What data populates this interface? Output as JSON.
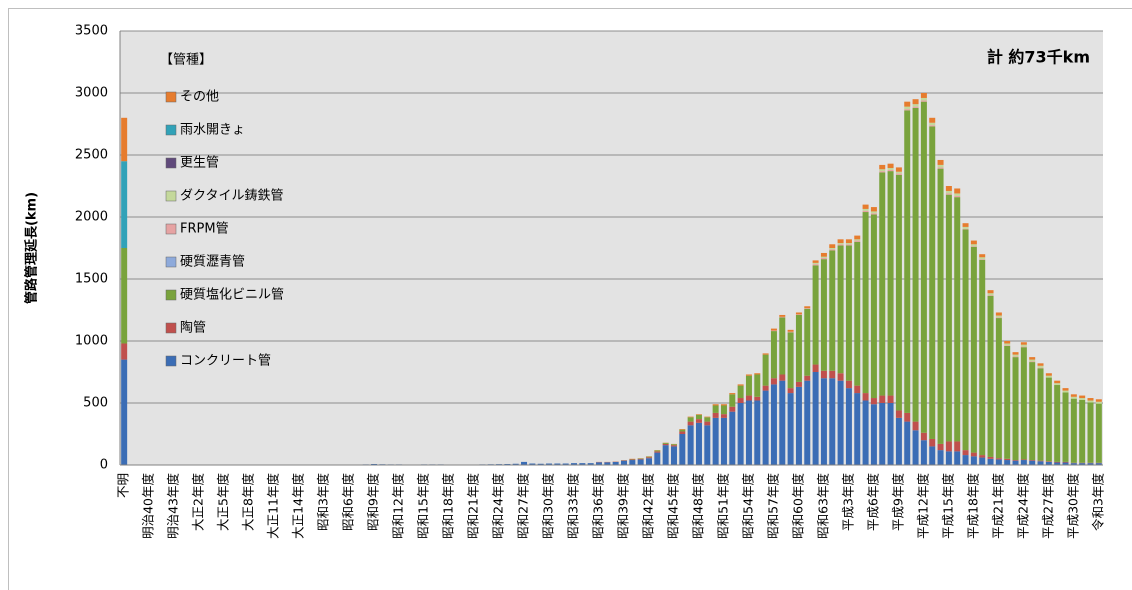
{
  "chart_data": {
    "type": "stacked_bar",
    "annotation": "計 約73千km",
    "y_label": "管路管理延長(km)",
    "legend_title": "【管種】",
    "legend": "upper left",
    "grid": true,
    "ylim": [
      0,
      3500
    ],
    "yticks": [
      0,
      500,
      1000,
      1500,
      2000,
      2500,
      3000,
      3500
    ],
    "categories": [
      "不明",
      null,
      null,
      "明治40年度",
      null,
      null,
      "明治43年度",
      null,
      null,
      "大正2年度",
      null,
      null,
      "大正5年度",
      null,
      null,
      "大正8年度",
      null,
      null,
      "大正11年度",
      null,
      null,
      "大正14年度",
      null,
      null,
      "昭和3年度",
      null,
      null,
      "昭和6年度",
      null,
      null,
      "昭和9年度",
      null,
      null,
      "昭和12年度",
      null,
      null,
      "昭和15年度",
      null,
      null,
      "昭和18年度",
      null,
      null,
      "昭和21年度",
      null,
      null,
      "昭和24年度",
      null,
      null,
      "昭和27年度",
      null,
      null,
      "昭和30年度",
      null,
      null,
      "昭和33年度",
      null,
      null,
      "昭和36年度",
      null,
      null,
      "昭和39年度",
      null,
      null,
      "昭和42年度",
      null,
      null,
      "昭和45年度",
      null,
      null,
      "昭和48年度",
      null,
      null,
      "昭和51年度",
      null,
      null,
      "昭和54年度",
      null,
      null,
      "昭和57年度",
      null,
      null,
      "昭和60年度",
      null,
      null,
      "昭和63年度",
      null,
      null,
      "平成3年度",
      null,
      null,
      "平成6年度",
      null,
      null,
      "平成9年度",
      null,
      null,
      "平成12年度",
      null,
      null,
      "平成15年度",
      null,
      null,
      "平成18年度",
      null,
      null,
      "平成21年度",
      null,
      null,
      "平成24年度",
      null,
      null,
      "平成27年度",
      null,
      null,
      "平成30年度",
      null,
      null,
      "令和3年度"
    ],
    "series": [
      {
        "name": "コンクリート管",
        "color": "#3b6db5",
        "values": [
          850,
          0,
          0,
          0,
          0,
          0,
          0,
          0,
          0,
          0,
          0,
          0,
          0,
          0,
          0,
          0,
          0,
          0,
          0,
          0,
          0,
          0,
          2,
          2,
          3,
          3,
          3,
          4,
          4,
          5,
          8,
          6,
          5,
          5,
          4,
          4,
          5,
          5,
          5,
          4,
          3,
          3,
          4,
          5,
          6,
          7,
          8,
          10,
          25,
          12,
          10,
          12,
          12,
          12,
          15,
          15,
          15,
          22,
          22,
          25,
          35,
          40,
          45,
          55,
          100,
          160,
          150,
          250,
          320,
          340,
          320,
          380,
          380,
          430,
          500,
          520,
          520,
          600,
          650,
          680,
          580,
          630,
          680,
          750,
          700,
          700,
          680,
          620,
          580,
          520,
          490,
          500,
          500,
          380,
          350,
          280,
          200,
          150,
          120,
          110,
          110,
          80,
          70,
          60,
          50,
          45,
          40,
          35,
          40,
          35,
          30,
          25,
          20,
          20,
          15,
          15,
          15,
          15
        ]
      },
      {
        "name": "陶管",
        "color": "#c0504d",
        "values": [
          130,
          0,
          0,
          0,
          0,
          0,
          0,
          0,
          0,
          0,
          0,
          0,
          0,
          0,
          0,
          0,
          0,
          0,
          0,
          0,
          0,
          0,
          0,
          0,
          0,
          0,
          0,
          0,
          0,
          0,
          0,
          0,
          0,
          0,
          0,
          0,
          0,
          0,
          0,
          0,
          0,
          0,
          0,
          0,
          0,
          0,
          0,
          0,
          0,
          0,
          0,
          0,
          0,
          0,
          0,
          0,
          0,
          2,
          2,
          2,
          3,
          5,
          5,
          8,
          10,
          10,
          10,
          20,
          30,
          30,
          30,
          40,
          30,
          40,
          40,
          40,
          30,
          40,
          50,
          50,
          40,
          40,
          40,
          60,
          60,
          60,
          60,
          60,
          60,
          60,
          50,
          60,
          60,
          60,
          70,
          70,
          60,
          60,
          50,
          80,
          80,
          40,
          30,
          20,
          15,
          10,
          10,
          5,
          5,
          5,
          5,
          5,
          5,
          5,
          3,
          3,
          3,
          3
        ]
      },
      {
        "name": "硬質塩化ビニル管",
        "color": "#79a33c",
        "values": [
          770,
          0,
          0,
          0,
          0,
          0,
          0,
          0,
          0,
          0,
          0,
          0,
          0,
          0,
          0,
          0,
          0,
          0,
          0,
          0,
          0,
          0,
          0,
          0,
          0,
          0,
          0,
          0,
          0,
          0,
          0,
          0,
          0,
          0,
          0,
          0,
          0,
          0,
          0,
          0,
          0,
          0,
          0,
          0,
          0,
          0,
          0,
          0,
          0,
          0,
          0,
          0,
          0,
          0,
          0,
          0,
          0,
          0,
          0,
          0,
          1,
          3,
          3,
          5,
          8,
          8,
          8,
          15,
          35,
          35,
          35,
          60,
          70,
          100,
          100,
          160,
          180,
          250,
          380,
          460,
          450,
          540,
          540,
          800,
          900,
          970,
          1030,
          1090,
          1160,
          1460,
          1480,
          1800,
          1810,
          1900,
          2440,
          2530,
          2670,
          2520,
          2220,
          1990,
          1970,
          1780,
          1660,
          1575,
          1300,
          1130,
          910,
          830,
          905,
          790,
          745,
          675,
          620,
          560,
          517,
          507,
          487,
          477
        ]
      },
      {
        "name": "硬質瀝青管",
        "color": "#8eaadb",
        "values": [
          0,
          0,
          0,
          0,
          0,
          0,
          0,
          0,
          0,
          0,
          0,
          0,
          0,
          0,
          0,
          0,
          0,
          0,
          0,
          0,
          0,
          0,
          0,
          0,
          0,
          0,
          0,
          0,
          0,
          0,
          0,
          0,
          0,
          0,
          0,
          0,
          0,
          0,
          0,
          0,
          0,
          0,
          0,
          0,
          0,
          0,
          0,
          0,
          0,
          0,
          0,
          0,
          0,
          0,
          0,
          0,
          0,
          0,
          0,
          0,
          0,
          0,
          0,
          0,
          0,
          0,
          0,
          0,
          0,
          0,
          0,
          0,
          0,
          0,
          0,
          0,
          0,
          0,
          0,
          0,
          0,
          0,
          0,
          0,
          0,
          0,
          0,
          0,
          0,
          0,
          0,
          0,
          0,
          0,
          0,
          0,
          0,
          0,
          0,
          0,
          0,
          0,
          0,
          0,
          0,
          0,
          0,
          0,
          0,
          0,
          0,
          0,
          0,
          0,
          0,
          0,
          0,
          0
        ]
      },
      {
        "name": "FRPM管",
        "color": "#e6a3a3",
        "values": [
          0,
          0,
          0,
          0,
          0,
          0,
          0,
          0,
          0,
          0,
          0,
          0,
          0,
          0,
          0,
          0,
          0,
          0,
          0,
          0,
          0,
          0,
          0,
          0,
          0,
          0,
          0,
          0,
          0,
          0,
          0,
          0,
          0,
          0,
          0,
          0,
          0,
          0,
          0,
          0,
          0,
          0,
          0,
          0,
          0,
          0,
          0,
          0,
          0,
          0,
          0,
          0,
          0,
          0,
          0,
          0,
          0,
          0,
          0,
          0,
          0,
          0,
          0,
          0,
          0,
          0,
          0,
          0,
          0,
          0,
          0,
          0,
          0,
          0,
          0,
          0,
          0,
          0,
          5,
          5,
          5,
          5,
          5,
          10,
          10,
          10,
          10,
          10,
          10,
          10,
          10,
          10,
          10,
          10,
          10,
          10,
          10,
          10,
          10,
          10,
          10,
          5,
          5,
          5,
          5,
          5,
          5,
          5,
          5,
          5,
          5,
          0,
          0,
          0,
          0,
          0,
          0,
          0
        ]
      },
      {
        "name": "ダクタイル鋳鉄管",
        "color": "#c4d89b",
        "values": [
          0,
          0,
          0,
          0,
          0,
          0,
          0,
          0,
          0,
          0,
          0,
          0,
          0,
          0,
          0,
          0,
          0,
          0,
          0,
          0,
          0,
          0,
          0,
          0,
          0,
          0,
          0,
          0,
          0,
          0,
          0,
          0,
          0,
          0,
          0,
          0,
          0,
          0,
          0,
          0,
          0,
          0,
          0,
          0,
          0,
          0,
          0,
          0,
          0,
          0,
          0,
          0,
          0,
          0,
          0,
          0,
          0,
          0,
          0,
          0,
          0,
          0,
          0,
          0,
          0,
          0,
          0,
          0,
          0,
          0,
          0,
          0,
          0,
          0,
          0,
          0,
          0,
          0,
          0,
          0,
          0,
          0,
          0,
          10,
          10,
          10,
          10,
          10,
          10,
          15,
          15,
          15,
          15,
          15,
          20,
          20,
          20,
          20,
          20,
          20,
          20,
          15,
          15,
          15,
          15,
          15,
          15,
          15,
          15,
          15,
          15,
          15,
          15,
          15,
          15,
          15,
          15,
          15
        ]
      },
      {
        "name": "更生管",
        "color": "#604a7b",
        "values": [
          0,
          0,
          0,
          0,
          0,
          0,
          0,
          0,
          0,
          0,
          0,
          0,
          0,
          0,
          0,
          0,
          0,
          0,
          0,
          0,
          0,
          0,
          0,
          0,
          0,
          0,
          0,
          0,
          0,
          0,
          0,
          0,
          0,
          0,
          0,
          0,
          0,
          0,
          0,
          0,
          0,
          0,
          0,
          0,
          0,
          0,
          0,
          0,
          0,
          0,
          0,
          0,
          0,
          0,
          0,
          0,
          0,
          0,
          0,
          0,
          0,
          0,
          0,
          0,
          0,
          0,
          0,
          0,
          0,
          0,
          0,
          0,
          0,
          0,
          0,
          0,
          0,
          0,
          0,
          0,
          0,
          0,
          0,
          0,
          0,
          0,
          0,
          0,
          0,
          0,
          0,
          0,
          0,
          0,
          0,
          0,
          0,
          0,
          0,
          0,
          0,
          0,
          0,
          0,
          0,
          0,
          0,
          0,
          0,
          0,
          0,
          0,
          0,
          0,
          0,
          0,
          0,
          0
        ]
      },
      {
        "name": "雨水開きょ",
        "color": "#31a2b8",
        "values": [
          700,
          0,
          0,
          0,
          0,
          0,
          0,
          0,
          0,
          0,
          0,
          0,
          0,
          0,
          0,
          0,
          0,
          0,
          0,
          0,
          0,
          0,
          0,
          0,
          0,
          0,
          0,
          0,
          0,
          0,
          0,
          0,
          0,
          0,
          0,
          0,
          0,
          0,
          0,
          0,
          0,
          0,
          0,
          0,
          0,
          0,
          0,
          0,
          0,
          0,
          0,
          0,
          0,
          0,
          0,
          0,
          0,
          0,
          0,
          0,
          0,
          0,
          0,
          0,
          0,
          0,
          0,
          0,
          0,
          0,
          0,
          0,
          0,
          0,
          0,
          0,
          0,
          0,
          0,
          0,
          0,
          0,
          0,
          0,
          0,
          0,
          0,
          0,
          0,
          0,
          0,
          0,
          0,
          0,
          0,
          0,
          0,
          0,
          0,
          0,
          0,
          0,
          0,
          0,
          0,
          0,
          0,
          0,
          0,
          0,
          0,
          0,
          0,
          0,
          0,
          0,
          0,
          0
        ]
      },
      {
        "name": "その他",
        "color": "#e67c2e",
        "values": [
          350,
          0,
          0,
          0,
          0,
          0,
          0,
          0,
          0,
          0,
          0,
          0,
          0,
          0,
          0,
          0,
          0,
          0,
          0,
          0,
          0,
          0,
          0,
          0,
          0,
          0,
          0,
          0,
          0,
          0,
          0,
          0,
          0,
          0,
          0,
          0,
          0,
          0,
          0,
          0,
          0,
          0,
          0,
          0,
          0,
          0,
          0,
          0,
          0,
          0,
          0,
          0,
          0,
          0,
          0,
          0,
          0,
          1,
          1,
          1,
          1,
          2,
          2,
          2,
          2,
          2,
          2,
          5,
          5,
          5,
          5,
          10,
          10,
          10,
          10,
          10,
          10,
          10,
          15,
          15,
          15,
          15,
          15,
          20,
          30,
          30,
          30,
          30,
          30,
          35,
          35,
          35,
          35,
          35,
          40,
          40,
          40,
          40,
          40,
          40,
          40,
          30,
          30,
          25,
          25,
          25,
          20,
          20,
          20,
          20,
          20,
          20,
          20,
          20,
          20,
          20,
          20,
          20
        ]
      }
    ]
  }
}
